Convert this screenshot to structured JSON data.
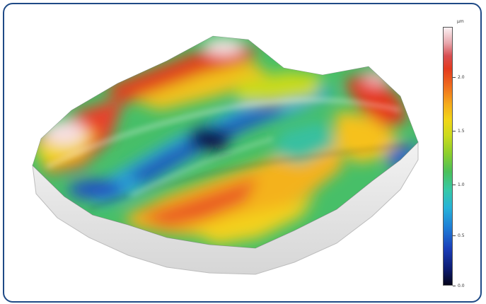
{
  "colorbar": {
    "unit": "µm",
    "ticks": [
      "2.0",
      "1.5",
      "1.0",
      "0.5",
      "0.0"
    ],
    "colors": [
      "#05051a",
      "#1a3db8",
      "#27b3d9",
      "#4bc05a",
      "#cbdb1d",
      "#f5ad1b",
      "#e33a1f",
      "#fbf1f3"
    ]
  },
  "frame": {
    "border_color": "#1f4a86"
  }
}
